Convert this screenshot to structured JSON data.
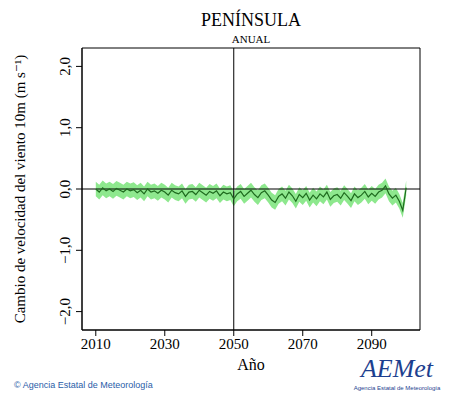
{
  "chart_data": {
    "type": "line",
    "title": "PENÍNSULA",
    "subtitle": "ANUAL",
    "x_label": "Año",
    "y_label": "Cambio de velocidad del viento 10m (m s⁻¹)",
    "footer": "© Agencia Estatal de Meteorología",
    "logo": {
      "text": "AEMet",
      "subtitle": "Agencia Estatal de Meteorología"
    },
    "xlim": [
      2006,
      2104
    ],
    "xticks": [
      2010,
      2030,
      2050,
      2070,
      2090
    ],
    "ylim": [
      -2.3,
      2.3
    ],
    "yticks": [
      {
        "value": -2,
        "label": "−2,0"
      },
      {
        "value": -1,
        "label": "−1,0"
      },
      {
        "value": 0,
        "label": "0,0"
      },
      {
        "value": 1,
        "label": "1,0"
      },
      {
        "value": 2,
        "label": "2,0"
      }
    ],
    "vlines": [
      2050
    ],
    "hlines": [
      0
    ],
    "x": [
      2010,
      2011,
      2012,
      2013,
      2014,
      2015,
      2016,
      2017,
      2018,
      2019,
      2020,
      2021,
      2022,
      2023,
      2024,
      2025,
      2026,
      2027,
      2028,
      2029,
      2030,
      2031,
      2032,
      2033,
      2034,
      2035,
      2036,
      2037,
      2038,
      2039,
      2040,
      2041,
      2042,
      2043,
      2044,
      2045,
      2046,
      2047,
      2048,
      2049,
      2050,
      2051,
      2052,
      2053,
      2054,
      2055,
      2056,
      2057,
      2058,
      2059,
      2060,
      2061,
      2062,
      2063,
      2064,
      2065,
      2066,
      2067,
      2068,
      2069,
      2070,
      2071,
      2072,
      2073,
      2074,
      2075,
      2076,
      2077,
      2078,
      2079,
      2080,
      2081,
      2082,
      2083,
      2084,
      2085,
      2086,
      2087,
      2088,
      2089,
      2090,
      2091,
      2092,
      2093,
      2094,
      2095,
      2096,
      2097,
      2098,
      2099,
      2100
    ],
    "series": [
      {
        "type": "line",
        "color": "#1e6b1e",
        "values": [
          0.0,
          -0.05,
          0.02,
          -0.03,
          0.0,
          -0.04,
          0.01,
          -0.02,
          -0.05,
          0.0,
          -0.03,
          -0.01,
          -0.06,
          -0.02,
          -0.08,
          0.0,
          -0.05,
          -0.03,
          -0.07,
          -0.02,
          -0.05,
          -0.1,
          -0.02,
          -0.06,
          -0.08,
          -0.03,
          -0.12,
          -0.05,
          -0.04,
          -0.09,
          -0.02,
          -0.06,
          -0.1,
          -0.04,
          -0.07,
          -0.03,
          -0.11,
          -0.05,
          -0.08,
          -0.06,
          -0.16,
          -0.08,
          -0.04,
          -0.12,
          -0.07,
          -0.02,
          -0.09,
          -0.14,
          -0.06,
          -0.03,
          -0.1,
          -0.18,
          -0.22,
          -0.12,
          -0.08,
          -0.15,
          -0.05,
          -0.11,
          -0.2,
          -0.09,
          -0.14,
          -0.07,
          -0.18,
          -0.1,
          -0.16,
          -0.08,
          -0.13,
          -0.05,
          -0.17,
          -0.11,
          -0.09,
          -0.15,
          -0.06,
          -0.12,
          -0.19,
          -0.08,
          -0.14,
          -0.1,
          -0.04,
          -0.13,
          -0.07,
          -0.12,
          -0.05,
          -0.02,
          0.05,
          -0.08,
          -0.15,
          -0.1,
          -0.2,
          -0.35,
          0.02
        ]
      },
      {
        "type": "area",
        "color": "#8ee88e",
        "lower": [
          -0.12,
          -0.17,
          -0.1,
          -0.15,
          -0.12,
          -0.16,
          -0.11,
          -0.14,
          -0.17,
          -0.12,
          -0.15,
          -0.13,
          -0.18,
          -0.14,
          -0.2,
          -0.12,
          -0.17,
          -0.15,
          -0.19,
          -0.14,
          -0.17,
          -0.22,
          -0.14,
          -0.18,
          -0.2,
          -0.15,
          -0.24,
          -0.17,
          -0.16,
          -0.21,
          -0.14,
          -0.18,
          -0.22,
          -0.16,
          -0.19,
          -0.15,
          -0.23,
          -0.17,
          -0.2,
          -0.18,
          -0.28,
          -0.2,
          -0.16,
          -0.24,
          -0.19,
          -0.14,
          -0.21,
          -0.26,
          -0.18,
          -0.15,
          -0.22,
          -0.3,
          -0.34,
          -0.24,
          -0.2,
          -0.27,
          -0.17,
          -0.23,
          -0.32,
          -0.21,
          -0.26,
          -0.19,
          -0.3,
          -0.22,
          -0.28,
          -0.2,
          -0.25,
          -0.17,
          -0.29,
          -0.23,
          -0.21,
          -0.27,
          -0.18,
          -0.24,
          -0.31,
          -0.2,
          -0.26,
          -0.22,
          -0.16,
          -0.25,
          -0.19,
          -0.24,
          -0.17,
          -0.14,
          -0.07,
          -0.2,
          -0.27,
          -0.22,
          -0.32,
          -0.47,
          -0.1
        ],
        "upper": [
          0.12,
          0.07,
          0.14,
          0.09,
          0.12,
          0.08,
          0.13,
          0.1,
          0.07,
          0.12,
          0.09,
          0.11,
          0.06,
          0.1,
          0.04,
          0.12,
          0.07,
          0.09,
          0.05,
          0.1,
          0.07,
          0.02,
          0.1,
          0.06,
          0.04,
          0.09,
          0.0,
          0.07,
          0.08,
          0.03,
          0.1,
          0.06,
          0.02,
          0.08,
          0.05,
          0.09,
          0.01,
          0.07,
          0.04,
          0.06,
          -0.04,
          0.04,
          0.08,
          0.0,
          0.05,
          0.1,
          0.03,
          -0.02,
          0.06,
          0.09,
          0.02,
          -0.06,
          -0.1,
          0.0,
          0.04,
          -0.03,
          0.07,
          0.01,
          -0.08,
          0.03,
          -0.02,
          0.05,
          -0.06,
          0.02,
          -0.04,
          0.04,
          -0.01,
          0.07,
          -0.05,
          0.01,
          0.03,
          -0.03,
          0.06,
          0.0,
          -0.07,
          0.04,
          -0.02,
          0.02,
          0.08,
          -0.01,
          0.05,
          0.0,
          0.07,
          0.1,
          0.17,
          0.04,
          -0.03,
          0.02,
          -0.08,
          -0.23,
          0.14
        ]
      }
    ]
  }
}
